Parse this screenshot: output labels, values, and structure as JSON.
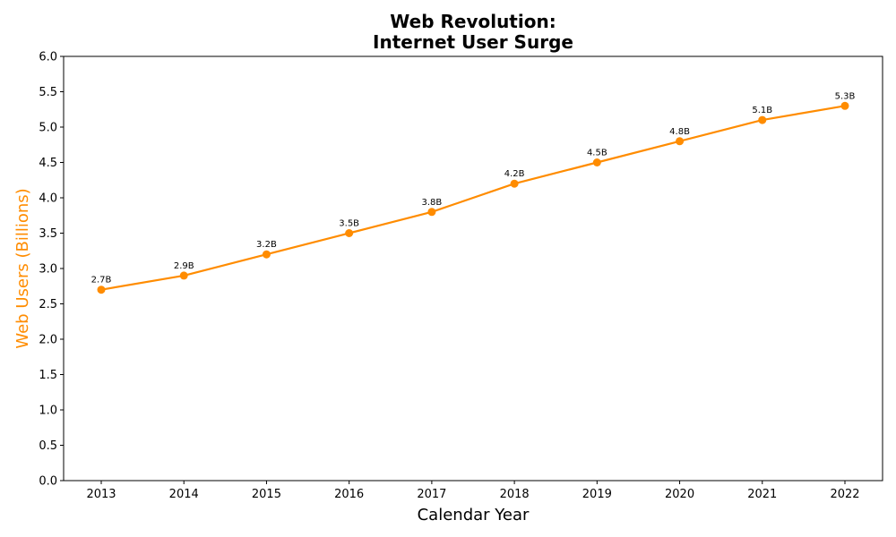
{
  "chart_data": {
    "type": "line",
    "title_line1": "Web Revolution:",
    "title_line2": "Internet User Surge",
    "xlabel": "Calendar Year",
    "ylabel": "Web Users (Billions)",
    "x": [
      2013,
      2014,
      2015,
      2016,
      2017,
      2018,
      2019,
      2020,
      2021,
      2022
    ],
    "x_tick_labels": [
      "2013",
      "2014",
      "2015",
      "2016",
      "2017",
      "2018",
      "2019",
      "2020",
      "2021",
      "2022"
    ],
    "y": [
      2.7,
      2.9,
      3.2,
      3.5,
      3.8,
      4.2,
      4.5,
      4.8,
      5.1,
      5.3
    ],
    "data_labels": [
      "2.7B",
      "2.9B",
      "3.2B",
      "3.5B",
      "3.8B",
      "4.2B",
      "4.5B",
      "4.8B",
      "5.1B",
      "5.3B"
    ],
    "ylim": [
      0,
      6
    ],
    "y_ticks": [
      0,
      0.5,
      1,
      1.5,
      2,
      2.5,
      3,
      3.5,
      4,
      4.5,
      5,
      5.5,
      6
    ],
    "y_tick_labels": [
      "0.0",
      "0.5",
      "1.0",
      "1.5",
      "2.0",
      "2.5",
      "3.0",
      "3.5",
      "4.0",
      "4.5",
      "5.0",
      "5.5",
      "6.0"
    ],
    "grid": false,
    "legend": "none",
    "series_color": "#ff8c00",
    "ylabel_color": "#ff8c00"
  }
}
